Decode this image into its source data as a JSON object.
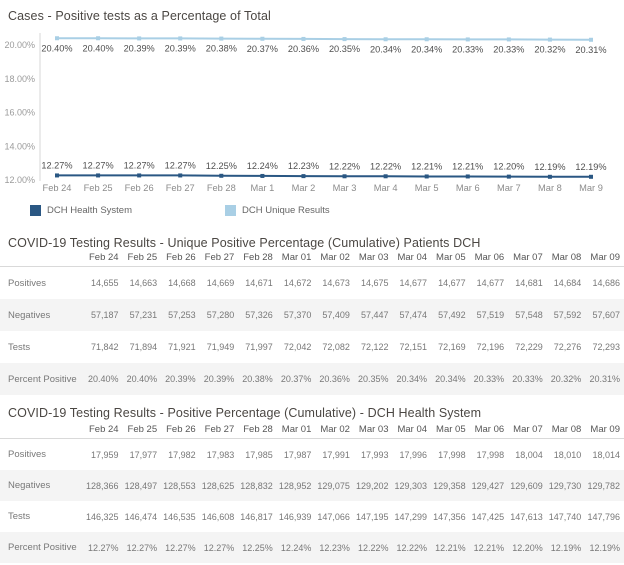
{
  "colors": {
    "dark_blue": "#2a5783",
    "light_blue": "#a9cfe5",
    "axis_line": "#d7d7d7",
    "header_rule": "#d9d9d9",
    "band_gray": "#f4f4f4",
    "title_text": "#4b4743",
    "value_text": "#787878"
  },
  "chart_data": [
    {
      "type": "line",
      "title": "Cases - Positive tests as a Percentage of Total",
      "x": [
        "Feb 24",
        "Feb 25",
        "Feb 26",
        "Feb 27",
        "Feb 28",
        "Mar 1",
        "Mar 2",
        "Mar 3",
        "Mar 4",
        "Mar 5",
        "Mar 6",
        "Mar 7",
        "Mar 8",
        "Mar 9"
      ],
      "y_ticks": [
        "20.00%",
        "18.00%",
        "16.00%",
        "14.00%",
        "12.00%"
      ],
      "ylim": [
        12.0,
        20.5
      ],
      "grid": false,
      "legend_position": "bottom",
      "series": [
        {
          "name": "DCH Health System",
          "color": "#2a5783",
          "label_position": "above",
          "values": [
            12.27,
            12.27,
            12.27,
            12.27,
            12.25,
            12.24,
            12.23,
            12.22,
            12.22,
            12.21,
            12.21,
            12.2,
            12.19,
            12.19
          ]
        },
        {
          "name": "DCH Unique Results",
          "color": "#a9cfe5",
          "label_position": "below",
          "values": [
            20.4,
            20.4,
            20.39,
            20.39,
            20.38,
            20.37,
            20.36,
            20.35,
            20.34,
            20.34,
            20.33,
            20.33,
            20.32,
            20.31
          ]
        }
      ]
    },
    {
      "type": "table",
      "title": "COVID-19 Testing Results - Unique Positive Percentage (Cumulative) Patients DCH",
      "columns": [
        "Feb 24",
        "Feb 25",
        "Feb 26",
        "Feb 27",
        "Feb 28",
        "Mar 01",
        "Mar 02",
        "Mar 03",
        "Mar 04",
        "Mar 05",
        "Mar 06",
        "Mar 07",
        "Mar 08",
        "Mar 09"
      ],
      "rows": [
        {
          "label": "Positives",
          "values": [
            "14,655",
            "14,663",
            "14,668",
            "14,669",
            "14,671",
            "14,672",
            "14,673",
            "14,675",
            "14,677",
            "14,677",
            "14,677",
            "14,681",
            "14,684",
            "14,686"
          ]
        },
        {
          "label": "Negatives",
          "values": [
            "57,187",
            "57,231",
            "57,253",
            "57,280",
            "57,326",
            "57,370",
            "57,409",
            "57,447",
            "57,474",
            "57,492",
            "57,519",
            "57,548",
            "57,592",
            "57,607"
          ]
        },
        {
          "label": "Tests",
          "values": [
            "71,842",
            "71,894",
            "71,921",
            "71,949",
            "71,997",
            "72,042",
            "72,082",
            "72,122",
            "72,151",
            "72,169",
            "72,196",
            "72,229",
            "72,276",
            "72,293"
          ]
        },
        {
          "label": "Percent Positive",
          "values": [
            "20.40%",
            "20.40%",
            "20.39%",
            "20.39%",
            "20.38%",
            "20.37%",
            "20.36%",
            "20.35%",
            "20.34%",
            "20.34%",
            "20.33%",
            "20.33%",
            "20.32%",
            "20.31%"
          ]
        }
      ]
    },
    {
      "type": "table",
      "title": "COVID-19 Testing Results - Positive Percentage (Cumulative) - DCH Health System",
      "columns": [
        "Feb 24",
        "Feb 25",
        "Feb 26",
        "Feb 27",
        "Feb 28",
        "Mar 01",
        "Mar 02",
        "Mar 03",
        "Mar 04",
        "Mar 05",
        "Mar 06",
        "Mar 07",
        "Mar 08",
        "Mar 09"
      ],
      "rows": [
        {
          "label": "Positives",
          "values": [
            "17,959",
            "17,977",
            "17,982",
            "17,983",
            "17,985",
            "17,987",
            "17,991",
            "17,993",
            "17,996",
            "17,998",
            "17,998",
            "18,004",
            "18,010",
            "18,014"
          ]
        },
        {
          "label": "Negatives",
          "values": [
            "128,366",
            "128,497",
            "128,553",
            "128,625",
            "128,832",
            "128,952",
            "129,075",
            "129,202",
            "129,303",
            "129,358",
            "129,427",
            "129,609",
            "129,730",
            "129,782"
          ]
        },
        {
          "label": "Tests",
          "values": [
            "146,325",
            "146,474",
            "146,535",
            "146,608",
            "146,817",
            "146,939",
            "147,066",
            "147,195",
            "147,299",
            "147,356",
            "147,425",
            "147,613",
            "147,740",
            "147,796"
          ]
        },
        {
          "label": "Percent Positive",
          "values": [
            "12.27%",
            "12.27%",
            "12.27%",
            "12.27%",
            "12.25%",
            "12.24%",
            "12.23%",
            "12.22%",
            "12.22%",
            "12.21%",
            "12.21%",
            "12.20%",
            "12.19%",
            "12.19%"
          ]
        }
      ]
    }
  ]
}
